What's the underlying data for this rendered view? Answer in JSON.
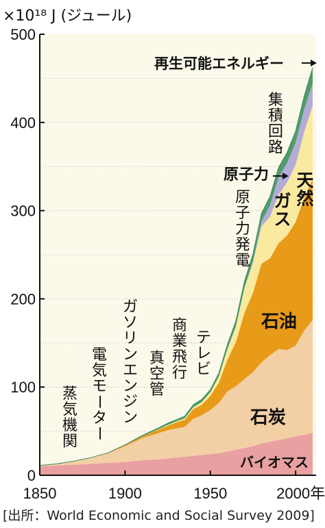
{
  "chart_data": {
    "type": "area",
    "stacked": true,
    "unit_label": "×10¹⁸ J (ジュール)",
    "x_ticks": [
      "1850",
      "1900",
      "1950",
      "2000年"
    ],
    "y_ticks": [
      "0",
      "100",
      "200",
      "300",
      "400",
      "500"
    ],
    "xlim": [
      1850,
      2012
    ],
    "ylim": [
      0,
      500
    ],
    "grid": "dotted horizontal",
    "x": [
      1850,
      1860,
      1870,
      1880,
      1890,
      1900,
      1910,
      1920,
      1925,
      1930,
      1935,
      1940,
      1945,
      1950,
      1955,
      1960,
      1965,
      1970,
      1975,
      1980,
      1985,
      1990,
      1995,
      2000,
      2005,
      2010
    ],
    "series": [
      {
        "name": "バイオマス",
        "color": "#e8a0a0",
        "values": [
          10,
          11,
          12,
          13,
          14,
          15,
          17,
          18,
          19,
          20,
          21,
          22,
          23,
          24,
          25,
          27,
          29,
          31,
          33,
          36,
          38,
          40,
          42,
          44,
          46,
          48
        ]
      },
      {
        "name": "石炭",
        "color": "#f3cfa6",
        "values": [
          1,
          2,
          4,
          7,
          11,
          18,
          25,
          30,
          32,
          33,
          34,
          42,
          45,
          50,
          57,
          68,
          72,
          78,
          84,
          92,
          98,
          103,
          100,
          103,
          118,
          128
        ]
      },
      {
        "name": "石油",
        "color": "#e89a19",
        "values": [
          0,
          0,
          0,
          0,
          0.5,
          1,
          2,
          4,
          5,
          7,
          8,
          11,
          12,
          16,
          23,
          36,
          50,
          75,
          90,
          112,
          110,
          120,
          130,
          140,
          150,
          160
        ]
      },
      {
        "name": "天然ガス",
        "color": "#faeaa0",
        "values": [
          0,
          0,
          0,
          0,
          0,
          0,
          0,
          0.5,
          1,
          1,
          1.5,
          2,
          3,
          4,
          7,
          12,
          18,
          28,
          34,
          42,
          47,
          55,
          60,
          65,
          75,
          83
        ]
      },
      {
        "name": "原子力",
        "color": "#b3acd6",
        "values": [
          0,
          0,
          0,
          0,
          0,
          0,
          0,
          0,
          0,
          0,
          0,
          0,
          0,
          0,
          0,
          0,
          0.2,
          0.7,
          2,
          6,
          13,
          20,
          22,
          25,
          26,
          25
        ]
      },
      {
        "name": "再生可能エネルギー",
        "color": "#4f9d6b",
        "values": [
          0,
          0,
          0,
          0,
          0,
          0.5,
          1,
          1.5,
          2,
          2,
          2.5,
          3,
          3,
          3,
          4,
          5,
          6,
          7,
          8,
          9,
          10,
          11,
          12,
          13,
          15,
          18
        ]
      }
    ],
    "annotations": [
      {
        "text": "蒸気機関",
        "x": 1880,
        "y": 20
      },
      {
        "text": "電気モーター",
        "x": 1888,
        "y": 30
      },
      {
        "text": "ガソリンエンジン",
        "x": 1897,
        "y": 45
      },
      {
        "text": "真空管",
        "x": 1915,
        "y": 60
      },
      {
        "text": "商業飛行",
        "x": 1930,
        "y": 85
      },
      {
        "text": "テレビ",
        "x": 1945,
        "y": 120
      },
      {
        "text": "原子力発電",
        "x": 1960,
        "y": 210
      },
      {
        "text": "集積回路",
        "x": 1975,
        "y": 345
      }
    ]
  },
  "series_labels": {
    "renewable": "再生可能エネルギー",
    "nuclear": "原子力",
    "gas": "天然ガス",
    "oil": "石油",
    "coal": "石炭",
    "biomass": "バイオマス"
  },
  "source": "[出所：World Economic and Social Survey 2009]"
}
